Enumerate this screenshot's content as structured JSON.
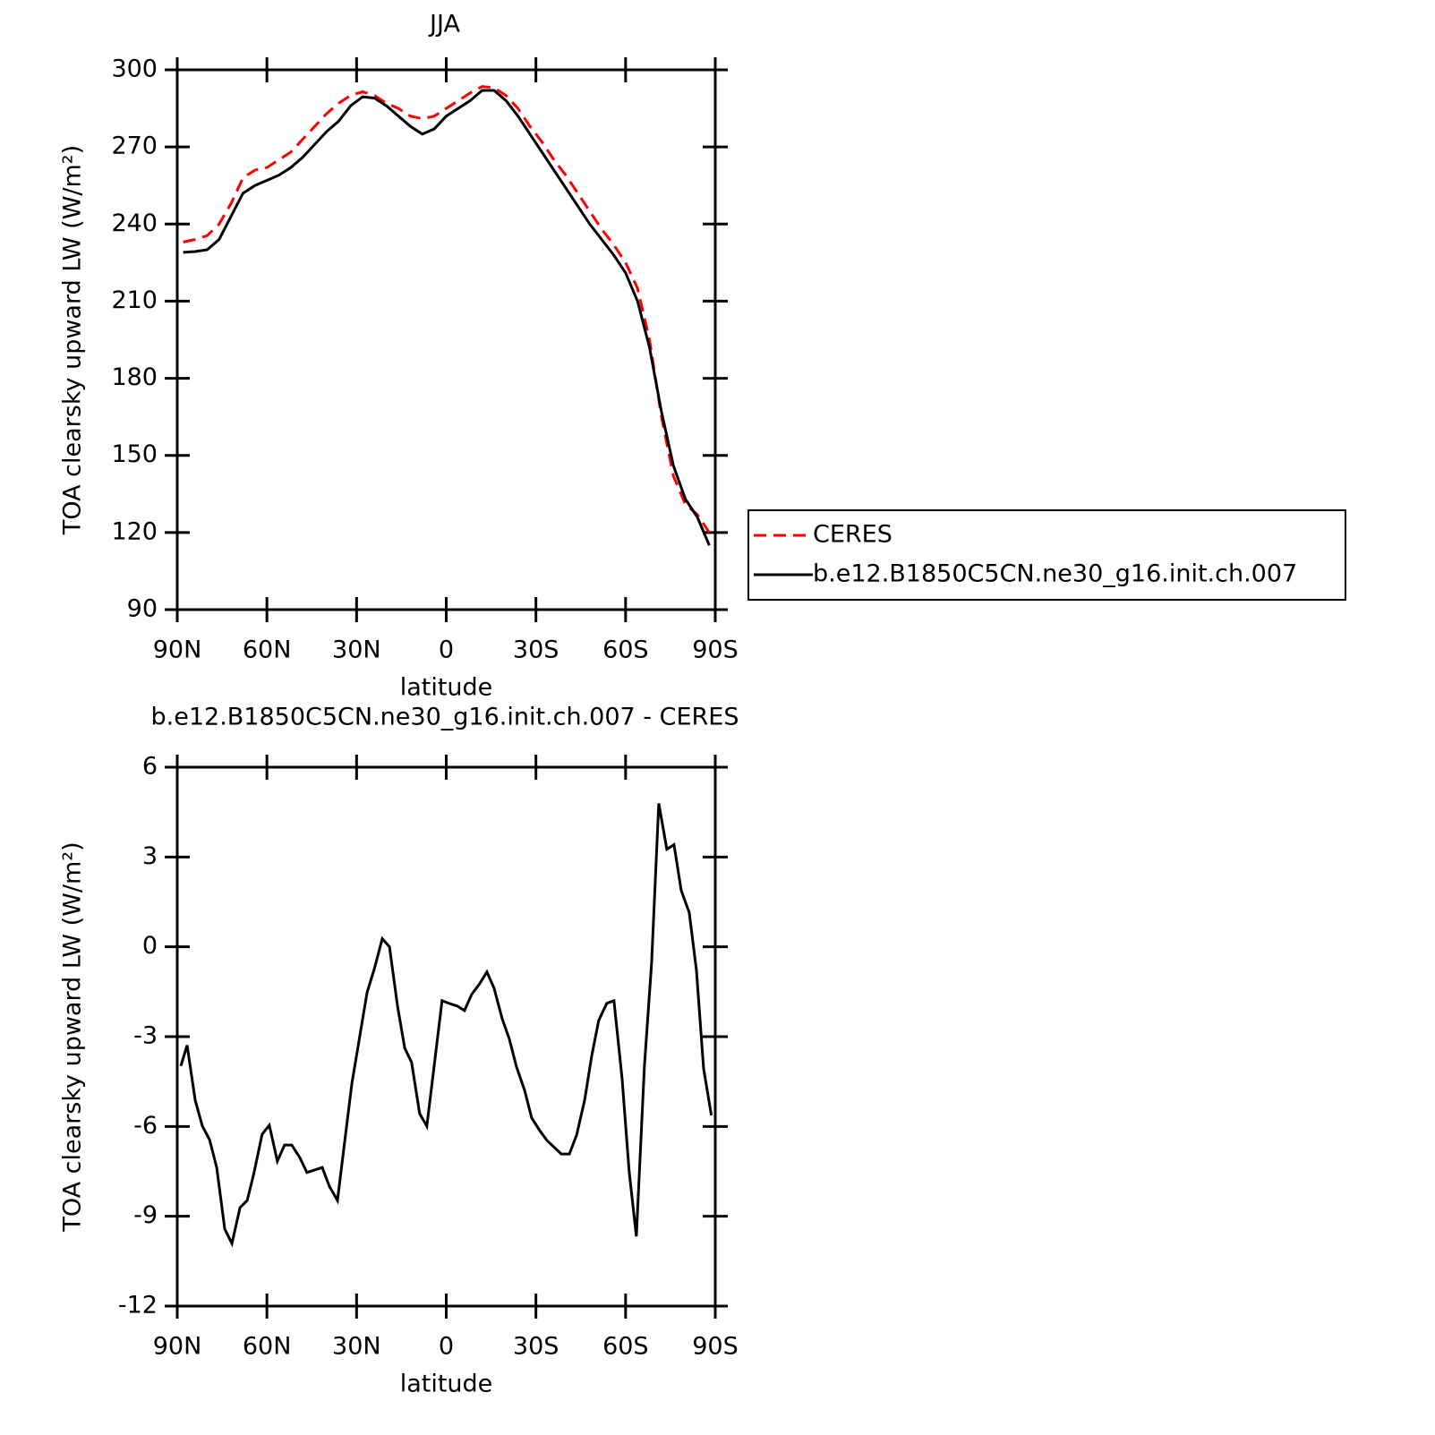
{
  "chart_data": [
    {
      "type": "line",
      "title": "JJA",
      "xlabel": "latitude",
      "ylabel": "TOA clearsky upward LW (W/m²)",
      "x": [
        88,
        84,
        80,
        76,
        72,
        68,
        64,
        60,
        56,
        52,
        48,
        44,
        40,
        36,
        32,
        28,
        24,
        20,
        16,
        12,
        8,
        4,
        0,
        -4,
        -8,
        -12,
        -16,
        -20,
        -24,
        -28,
        -32,
        -36,
        -40,
        -44,
        -48,
        -52,
        -56,
        -60,
        -64,
        -68,
        -72,
        -76,
        -80,
        -84,
        -88
      ],
      "series": [
        {
          "name": "CERES",
          "color": "#ff0000",
          "dashed": true,
          "values": [
            233,
            234,
            235.5,
            240,
            248,
            258,
            261,
            262,
            265,
            268,
            273,
            278,
            283,
            287,
            290,
            291.5,
            290,
            287,
            285,
            282,
            281,
            282,
            285,
            288,
            291,
            293.5,
            293,
            290,
            285,
            278,
            272,
            265,
            259,
            252,
            245,
            238,
            232,
            225,
            215,
            195,
            165,
            142,
            131,
            127,
            120
          ]
        },
        {
          "name": "b.e12.B1850C5CN.ne30_g16.init.ch.007",
          "color": "#000000",
          "dashed": false,
          "values": [
            229,
            229.3,
            230,
            234,
            243,
            252,
            255,
            257,
            259,
            262,
            266,
            271,
            276,
            280,
            286,
            289.5,
            289,
            286,
            282,
            278,
            275,
            277,
            282,
            285,
            288,
            292,
            292,
            288,
            282,
            275,
            268,
            261,
            254,
            247,
            240,
            234,
            228,
            221,
            210,
            192,
            167,
            146,
            133,
            126,
            115
          ]
        }
      ],
      "xlim": [
        90,
        -90
      ],
      "xticks": [
        {
          "value": 90,
          "label": "90N"
        },
        {
          "value": 60,
          "label": "60N"
        },
        {
          "value": 30,
          "label": "30N"
        },
        0,
        {
          "value": -30,
          "label": "30S"
        },
        {
          "value": -60,
          "label": "60S"
        },
        {
          "value": -90,
          "label": "90S"
        }
      ],
      "ylim": [
        90,
        300
      ],
      "yticks": [
        90,
        120,
        150,
        180,
        210,
        240,
        270,
        300
      ],
      "legend": "right"
    },
    {
      "type": "line",
      "title": "b.e12.B1850C5CN.ne30_g16.init.ch.007 - CERES",
      "xlabel": "latitude",
      "ylabel": "TOA clearsky upward LW (W/m²)",
      "x": [
        88.8,
        86.7,
        84.0,
        81.6,
        79.2,
        76.8,
        74.1,
        71.7,
        69.0,
        66.6,
        64.3,
        61.6,
        59.2,
        56.5,
        54.1,
        51.7,
        49.0,
        46.6,
        41.5,
        39.1,
        36.4,
        31.6,
        26.5,
        24.1,
        21.4,
        19.0,
        16.3,
        13.9,
        11.6,
        8.9,
        6.5,
        1.4,
        -1.0,
        -3.7,
        -6.1,
        -8.5,
        -11.2,
        -13.6,
        -16.0,
        -18.7,
        -21.1,
        -23.5,
        -26.2,
        -28.6,
        -31.3,
        -33.7,
        -38.5,
        -41.2,
        -43.6,
        -46.3,
        -48.6,
        -51.0,
        -53.7,
        -56.1,
        -58.8,
        -61.2,
        -63.6,
        -66.3,
        -68.7,
        -71.1,
        -73.8,
        -76.2,
        -78.6,
        -81.3,
        -83.7,
        -86.1,
        -88.7
      ],
      "series": [
        {
          "color": "#000000",
          "dashed": false,
          "values": [
            -3.98,
            -3.29,
            -5.12,
            -5.99,
            -6.44,
            -7.37,
            -9.43,
            -9.91,
            -8.71,
            -8.47,
            -7.54,
            -6.26,
            -5.96,
            -7.16,
            -6.62,
            -6.62,
            -7.04,
            -7.54,
            -7.37,
            -8.0,
            -8.47,
            -4.58,
            -1.53,
            -0.75,
            0.27,
            0,
            -1.98,
            -3.38,
            -3.86,
            -5.57,
            -5.99,
            -1.8,
            -1.89,
            -1.98,
            -2.13,
            -1.59,
            -1.23,
            -0.84,
            -1.38,
            -2.4,
            -3.08,
            -4.01,
            -4.79,
            -5.72,
            -6.14,
            -6.47,
            -6.92,
            -6.92,
            -6.29,
            -5.12,
            -3.68,
            -2.46,
            -1.89,
            -1.8,
            -4.37,
            -7.51,
            -9.67,
            -3.98,
            -0.54,
            4.79,
            3.26,
            3.41,
            1.89,
            1.14,
            -0.78,
            -4.07,
            -5.63
          ]
        }
      ],
      "xlim": [
        90,
        -90
      ],
      "xticks": [
        {
          "value": 90,
          "label": "90N"
        },
        {
          "value": 60,
          "label": "60N"
        },
        {
          "value": 30,
          "label": "30N"
        },
        0,
        {
          "value": -30,
          "label": "30S"
        },
        {
          "value": -60,
          "label": "60S"
        },
        {
          "value": -90,
          "label": "90S"
        }
      ],
      "ylim": [
        -12,
        6
      ],
      "yticks": [
        -12,
        -9,
        -6,
        -3,
        0,
        3,
        6
      ]
    }
  ]
}
